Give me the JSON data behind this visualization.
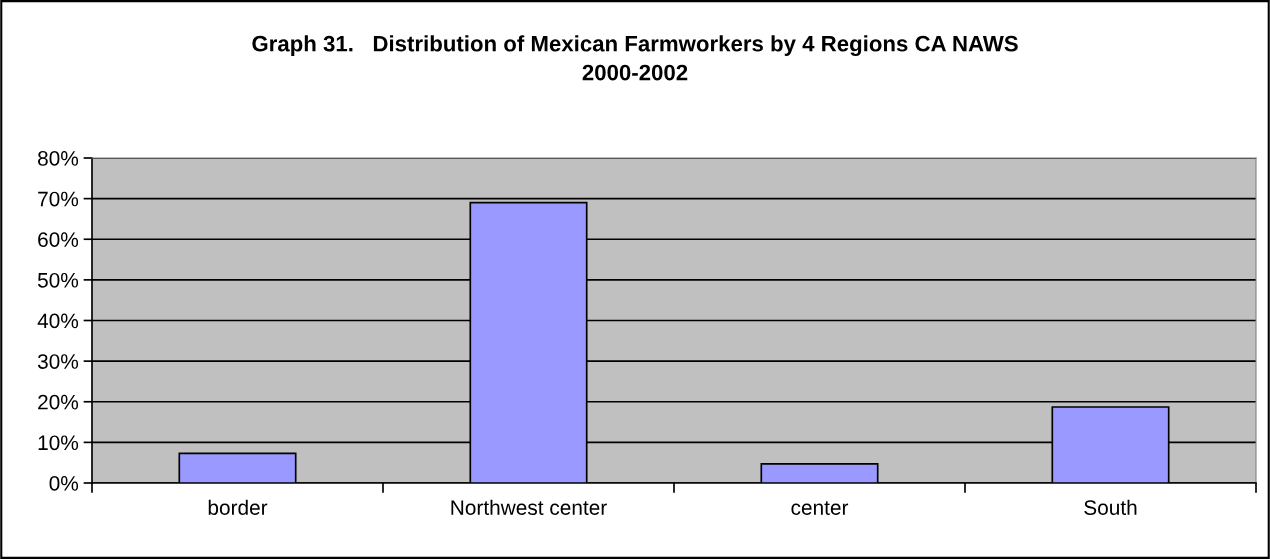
{
  "chart_data": {
    "type": "bar",
    "title": "Graph 31.   Distribution of Mexican Farmworkers by 4 Regions CA NAWS\n2000-2002",
    "categories": [
      "border",
      "Northwest center",
      "center",
      "South"
    ],
    "values": [
      7.3,
      69.0,
      4.7,
      18.7
    ],
    "color": "#9999ff",
    "ylim": [
      0,
      80
    ],
    "yticks": [
      {
        "value": 0,
        "label": "0%"
      },
      {
        "value": 10,
        "label": "10%"
      },
      {
        "value": 20,
        "label": "20%"
      },
      {
        "value": 30,
        "label": "30%"
      },
      {
        "value": 40,
        "label": "40%"
      },
      {
        "value": 50,
        "label": "50%"
      },
      {
        "value": 60,
        "label": "60%"
      },
      {
        "value": 70,
        "label": "70%"
      },
      {
        "value": 80,
        "label": "80%"
      }
    ],
    "grid": "y",
    "legend": false
  }
}
